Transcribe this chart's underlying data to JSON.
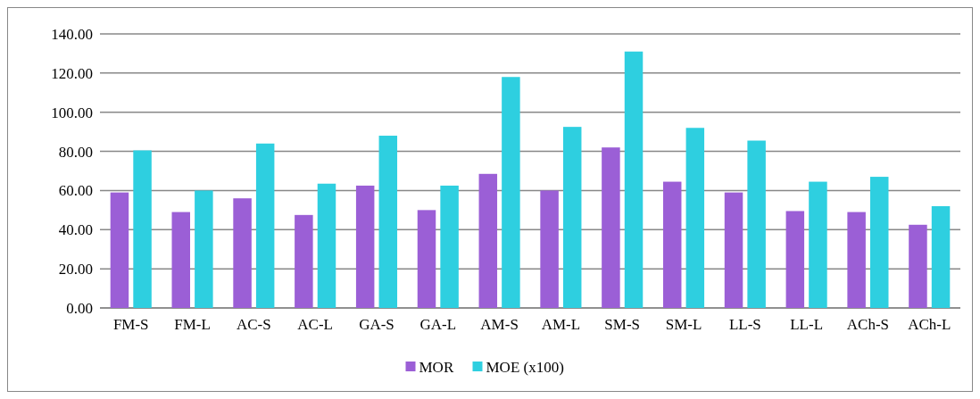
{
  "chart_data": {
    "type": "bar",
    "categories": [
      "FM-S",
      "FM-L",
      "AC-S",
      "AC-L",
      "GA-S",
      "GA-L",
      "AM-S",
      "AM-L",
      "SM-S",
      "SM-L",
      "LL-S",
      "LL-L",
      "ACh-S",
      "ACh-L"
    ],
    "series": [
      {
        "name": "MOR",
        "color": "#9b5fd6",
        "values": [
          59,
          49,
          56,
          47.5,
          62.5,
          50,
          68.5,
          60,
          82,
          64.5,
          59,
          49.5,
          49,
          42.5
        ]
      },
      {
        "name": "MOE (x100)",
        "color": "#2ecfe0",
        "values": [
          80.5,
          60,
          84,
          63.5,
          88,
          62.5,
          118,
          92.5,
          131,
          92,
          85.5,
          64.5,
          67,
          52
        ]
      }
    ],
    "ylim": [
      0,
      140
    ],
    "yticks": [
      {
        "value": 0,
        "label": "0.00"
      },
      {
        "value": 20,
        "label": "20.00"
      },
      {
        "value": 40,
        "label": "40.00"
      },
      {
        "value": 60,
        "label": "60.00"
      },
      {
        "value": 80,
        "label": "80.00"
      },
      {
        "value": 100,
        "label": "100.00"
      },
      {
        "value": 120,
        "label": "120.00"
      },
      {
        "value": 140,
        "label": "140.00"
      }
    ],
    "grid": "y",
    "legend": "bottom"
  }
}
